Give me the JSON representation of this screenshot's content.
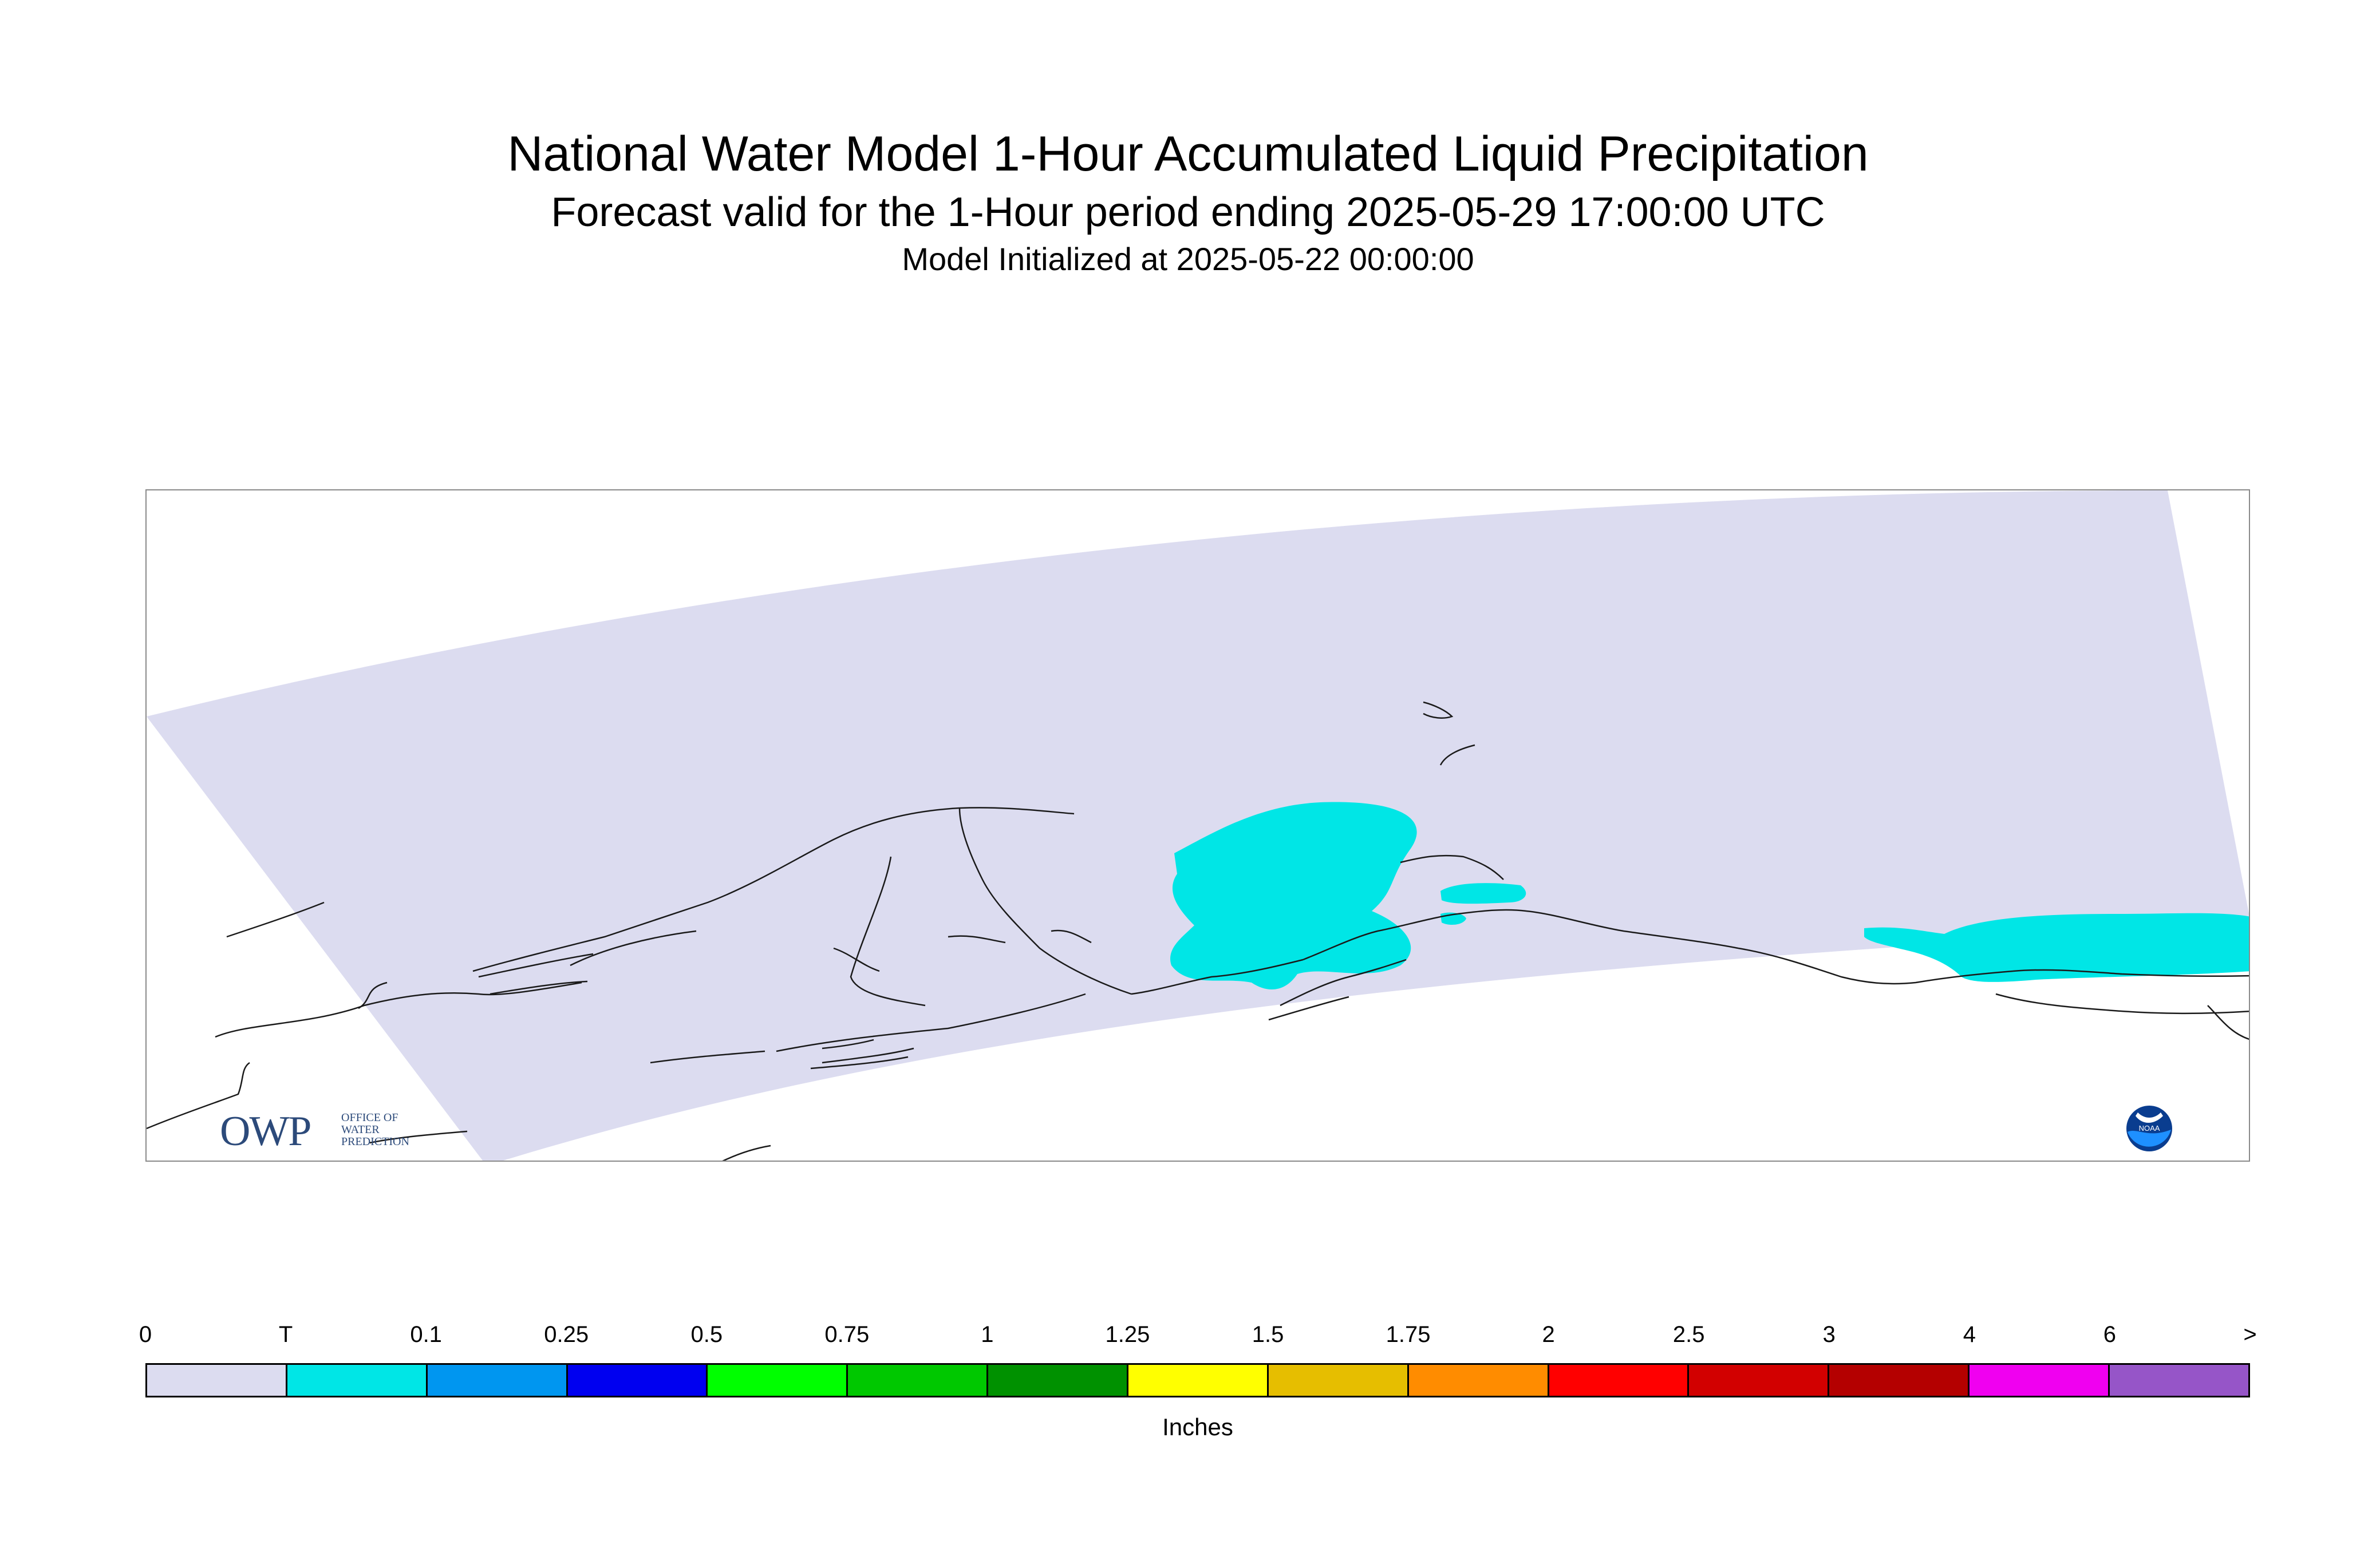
{
  "title": "National Water Model 1-Hour Accumulated Liquid Precipitation",
  "subtitle": "Forecast valid for the 1-Hour period ending 2025-05-29 17:00:00 UTC",
  "init_line": "Model Initialized at 2025-05-22 00:00:00",
  "logos": {
    "owp_main": "OWP",
    "owp_sub": [
      "OFFICE OF",
      "WATER",
      "PREDICTION"
    ],
    "noaa": "NOAA"
  },
  "legend": {
    "unit": "Inches",
    "labels": [
      "0",
      "T",
      "0.1",
      "0.25",
      "0.5",
      "0.75",
      "1",
      "1.25",
      "1.5",
      "1.75",
      "2",
      "2.5",
      "3",
      "4",
      "6",
      ">"
    ],
    "colors": [
      "#dcdcf0",
      "#00e6e6",
      "#0096f0",
      "#0000f0",
      "#00ff00",
      "#00c800",
      "#009100",
      "#ffff00",
      "#e6be00",
      "#ff8c00",
      "#ff0000",
      "#d20000",
      "#b40000",
      "#f000f0",
      "#9655c8"
    ]
  },
  "map_colors": {
    "domain_fill": "#dcdcf0",
    "precip_fill": "#00e6e6",
    "coastline": "#1a1a1a"
  }
}
